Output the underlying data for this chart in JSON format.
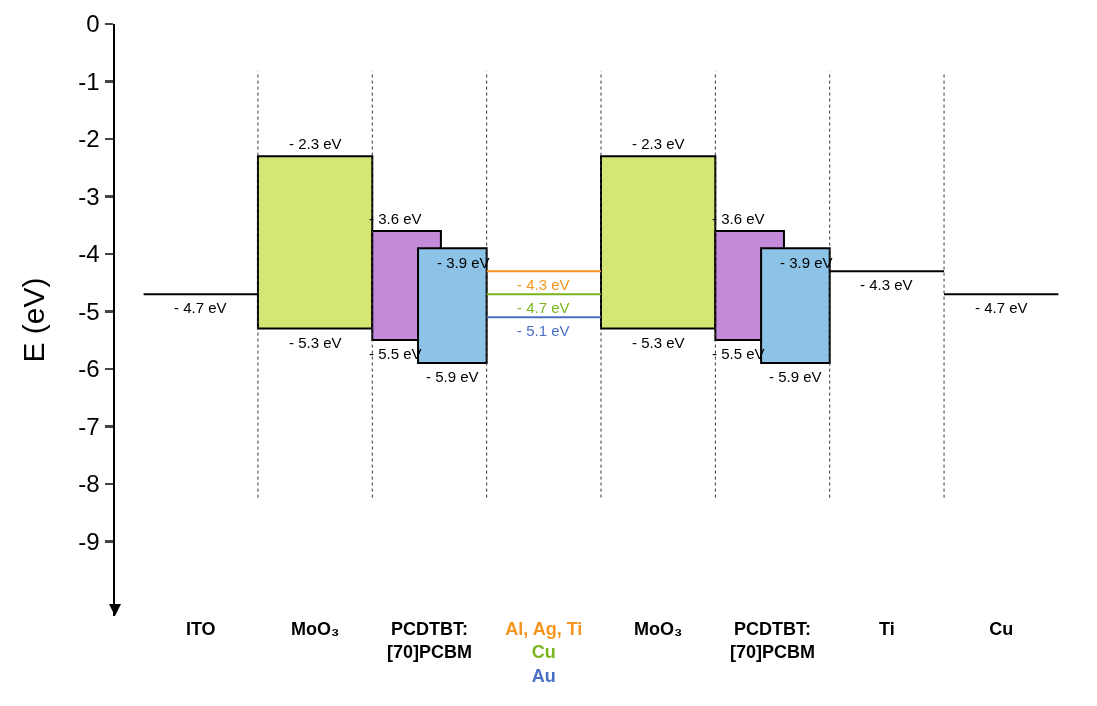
{
  "chart_data": {
    "type": "bar",
    "ylabel": "E (eV)",
    "categories": [
      null,
      "ITO",
      null,
      "MoO₃",
      null,
      "PCDTBT:\n[70]PCBM",
      null,
      null,
      null,
      "MoO₃",
      null,
      "PCDTBT:\n[70]PCBM",
      null,
      "Ti",
      null,
      "Cu",
      null
    ],
    "series": [
      {
        "color": "#d6e674",
        "base": [
          null,
          null,
          null,
          -5.3,
          null,
          null,
          null,
          null,
          null,
          -5.3,
          null,
          null,
          null,
          null,
          null,
          null,
          null
        ],
        "values": [
          null,
          null,
          null,
          3.0,
          null,
          null,
          null,
          null,
          null,
          3.0,
          null,
          null,
          null,
          null,
          null,
          null,
          null
        ],
        "value_labels": [
          null,
          null,
          null,
          "- 2.3 eV",
          null,
          null,
          null,
          null,
          null,
          "- 2.3 eV",
          null,
          null,
          null,
          null,
          null,
          null,
          null
        ]
      },
      {
        "color": "#c48ada",
        "base": [
          null,
          null,
          null,
          null,
          null,
          -5.5,
          null,
          null,
          null,
          null,
          null,
          -5.5,
          null,
          null,
          null,
          null,
          null
        ],
        "values": [
          null,
          null,
          null,
          null,
          null,
          1.9,
          null,
          null,
          null,
          null,
          null,
          1.9,
          null,
          null,
          null,
          null,
          null
        ],
        "value_labels": [
          null,
          null,
          null,
          null,
          null,
          "- 3.6 eV",
          null,
          null,
          null,
          null,
          null,
          "- 3.6 eV",
          null,
          null,
          null,
          null,
          null
        ]
      },
      {
        "color": "#8dc3e6",
        "base": [
          null,
          null,
          null,
          null,
          null,
          -5.9,
          null,
          null,
          null,
          null,
          null,
          -5.9,
          null,
          null,
          null,
          null,
          null
        ],
        "values": [
          null,
          null,
          null,
          null,
          null,
          2.0,
          null,
          null,
          null,
          null,
          null,
          2.0,
          null,
          null,
          null,
          null,
          null
        ],
        "value_labels": [
          null,
          null,
          null,
          null,
          null,
          "- 3.9 eV",
          null,
          null,
          null,
          null,
          null,
          "- 3.9 eV",
          null,
          null,
          null,
          null,
          null
        ]
      },
      {
        "type": "line",
        "color": "#000000",
        "values": [
          -4.7,
          -4.7,
          -4.7,
          null,
          null,
          null,
          null,
          null,
          null,
          null,
          null,
          null,
          null,
          null,
          null,
          null,
          null
        ],
        "value_labels": [
          null,
          "- 4.7 eV",
          null,
          null,
          null,
          null,
          null,
          null,
          null,
          null,
          null,
          null,
          null,
          null,
          null,
          null,
          null
        ]
      },
      {
        "type": "line",
        "color": "#000000",
        "values": [
          null,
          null,
          null,
          null,
          null,
          null,
          null,
          null,
          null,
          null,
          null,
          null,
          -4.3,
          -4.3,
          -4.3,
          null,
          null
        ],
        "value_labels": [
          null,
          null,
          null,
          null,
          null,
          null,
          null,
          null,
          null,
          null,
          null,
          null,
          null,
          "- 4.3 eV",
          null,
          null,
          null
        ]
      },
      {
        "type": "line",
        "color": "#000000",
        "values": [
          null,
          null,
          null,
          null,
          null,
          null,
          null,
          null,
          null,
          null,
          null,
          null,
          null,
          null,
          -4.7,
          -4.7,
          -4.7
        ],
        "value_labels": [
          null,
          null,
          null,
          null,
          null,
          null,
          null,
          null,
          null,
          null,
          null,
          null,
          null,
          null,
          null,
          "- 4.7 eV",
          null
        ]
      },
      {
        "type": "line",
        "name": "Al, Ag, Ti",
        "color": "#f7941d",
        "values": [
          null,
          null,
          null,
          null,
          null,
          null,
          -4.3,
          -4.3,
          -4.3,
          null,
          null,
          null,
          null,
          null,
          null,
          null,
          null
        ],
        "value_labels": [
          null,
          null,
          null,
          null,
          null,
          null,
          null,
          "- 4.3 eV",
          null,
          null,
          null,
          null,
          null,
          null,
          null,
          null,
          null
        ]
      },
      {
        "type": "line",
        "name": "Cu",
        "color": "#7ab51d",
        "values": [
          null,
          null,
          null,
          null,
          null,
          null,
          -4.7,
          -4.7,
          -4.7,
          null,
          null,
          null,
          null,
          null,
          null,
          null,
          null
        ],
        "value_labels": [
          null,
          null,
          null,
          null,
          null,
          null,
          null,
          "- 4.7 eV",
          null,
          null,
          null,
          null,
          null,
          null,
          null,
          null,
          null
        ]
      },
      {
        "type": "line",
        "name": "Au",
        "color": "#4a6fc4",
        "values": [
          null,
          null,
          null,
          null,
          null,
          null,
          -5.1,
          -5.1,
          -5.1,
          null,
          null,
          null,
          null,
          null,
          null,
          null,
          null
        ],
        "value_labels": [
          null,
          null,
          null,
          null,
          null,
          null,
          null,
          "- 5.1 eV",
          null,
          null,
          null,
          null,
          null,
          null,
          null,
          null,
          null
        ]
      }
    ],
    "annotations": [
      {
        "text": "- 5.3 eV",
        "y": -5.3
      },
      {
        "text": "- 5.5 eV",
        "y": -5.5
      },
      {
        "text": "- 5.9 eV",
        "y": -5.9
      },
      {
        "text": "- 5.3 eV",
        "y": -5.3
      },
      {
        "text": "- 5.5 eV",
        "y": -5.5
      },
      {
        "text": "- 5.9 eV",
        "y": -5.9
      }
    ],
    "ylim": [
      -10.3,
      0
    ],
    "yticks": [
      0,
      -1,
      -2,
      -3,
      -4,
      -5,
      -6,
      -7,
      -8,
      -9
    ],
    "grid": "x",
    "legend": false
  }
}
